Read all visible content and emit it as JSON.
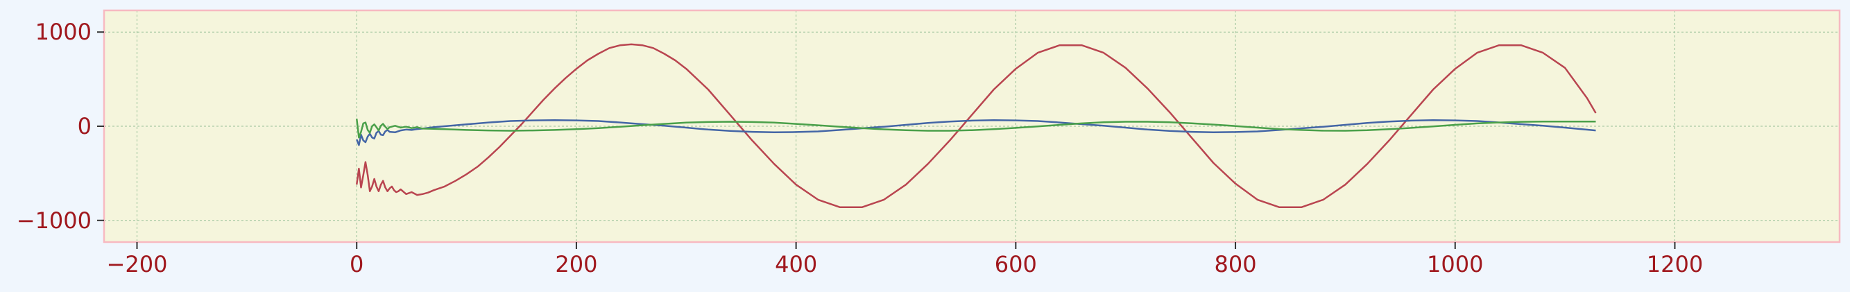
{
  "chart_data": {
    "type": "line",
    "title": "",
    "xlabel": "",
    "ylabel": "",
    "xlim": [
      -230,
      1350
    ],
    "ylim": [
      -1230,
      1230
    ],
    "xticks": [
      -200,
      0,
      200,
      400,
      600,
      800,
      1000,
      1200
    ],
    "xtick_labels": [
      "−200",
      "0",
      "200",
      "400",
      "600",
      "800",
      "1000",
      "1200"
    ],
    "yticks": [
      -1000,
      0,
      1000
    ],
    "ytick_labels": [
      "−1000",
      "0",
      "1000"
    ],
    "grid": true,
    "legend": "none",
    "colors": {
      "page_background": "#f0f6fd",
      "plot_background": "#f5f5dc",
      "frame": "#f7b9c1",
      "tick_label": "#a0181e",
      "grid": "#98c098"
    },
    "series": [
      {
        "color": "#b94550",
        "x": [
          0,
          2,
          4,
          6,
          8,
          10,
          12,
          14,
          16,
          18,
          20,
          22,
          24,
          26,
          28,
          30,
          32,
          34,
          36,
          38,
          40,
          45,
          50,
          55,
          60,
          65,
          70,
          80,
          90,
          100,
          110,
          120,
          130,
          140,
          150,
          160,
          170,
          180,
          190,
          200,
          210,
          220,
          230,
          240,
          250,
          260,
          270,
          280,
          290,
          300,
          320,
          340,
          360,
          380,
          400,
          420,
          440,
          460,
          480,
          500,
          520,
          540,
          560,
          580,
          600,
          620,
          640,
          660,
          680,
          700,
          720,
          740,
          760,
          780,
          800,
          820,
          840,
          860,
          880,
          900,
          920,
          940,
          960,
          980,
          1000,
          1020,
          1040,
          1060,
          1080,
          1100,
          1120,
          1128
        ],
        "y": [
          -620,
          -450,
          -650,
          -520,
          -380,
          -520,
          -690,
          -640,
          -560,
          -640,
          -690,
          -620,
          -580,
          -650,
          -690,
          -660,
          -640,
          -680,
          -700,
          -690,
          -670,
          -720,
          -700,
          -730,
          -720,
          -705,
          -680,
          -640,
          -580,
          -510,
          -430,
          -330,
          -220,
          -100,
          20,
          150,
          280,
          400,
          510,
          610,
          700,
          770,
          830,
          860,
          870,
          860,
          830,
          770,
          700,
          610,
          390,
          120,
          -150,
          -400,
          -620,
          -780,
          -860,
          -860,
          -780,
          -620,
          -400,
          -150,
          120,
          390,
          610,
          780,
          860,
          860,
          780,
          620,
          400,
          150,
          -120,
          -390,
          -610,
          -780,
          -860,
          -860,
          -780,
          -620,
          -400,
          -150,
          120,
          390,
          610,
          780,
          860,
          860,
          780,
          620,
          300,
          140
        ]
      },
      {
        "color": "#4466a6",
        "x": [
          0,
          2,
          4,
          6,
          8,
          10,
          12,
          14,
          16,
          18,
          20,
          22,
          24,
          26,
          28,
          30,
          35,
          40,
          45,
          50,
          55,
          60,
          70,
          80,
          100,
          120,
          140,
          160,
          180,
          200,
          220,
          240,
          260,
          280,
          300,
          320,
          340,
          360,
          380,
          400,
          420,
          440,
          460,
          480,
          500,
          520,
          540,
          560,
          580,
          600,
          620,
          640,
          660,
          680,
          700,
          720,
          740,
          760,
          780,
          800,
          820,
          840,
          860,
          880,
          900,
          920,
          940,
          960,
          980,
          1000,
          1020,
          1040,
          1060,
          1080,
          1100,
          1128
        ],
        "y": [
          -140,
          -200,
          -90,
          -150,
          -170,
          -110,
          -80,
          -120,
          -130,
          -70,
          -50,
          -90,
          -95,
          -55,
          -40,
          -60,
          -65,
          -45,
          -35,
          -40,
          -30,
          -25,
          -10,
          0,
          20,
          40,
          55,
          62,
          65,
          62,
          55,
          40,
          22,
          5,
          -15,
          -35,
          -50,
          -60,
          -65,
          -62,
          -55,
          -40,
          -22,
          -5,
          15,
          35,
          50,
          60,
          65,
          62,
          55,
          40,
          22,
          5,
          -15,
          -35,
          -50,
          -60,
          -65,
          -62,
          -55,
          -40,
          -22,
          -5,
          15,
          35,
          50,
          60,
          65,
          62,
          55,
          40,
          22,
          5,
          -15,
          -45
        ]
      },
      {
        "color": "#4aa04a",
        "x": [
          0,
          2,
          4,
          6,
          8,
          10,
          12,
          14,
          16,
          18,
          20,
          22,
          24,
          26,
          28,
          30,
          35,
          40,
          45,
          50,
          55,
          60,
          70,
          80,
          100,
          120,
          140,
          160,
          180,
          200,
          220,
          240,
          260,
          280,
          300,
          320,
          340,
          360,
          380,
          400,
          420,
          440,
          460,
          480,
          500,
          520,
          540,
          560,
          580,
          600,
          620,
          640,
          660,
          680,
          700,
          720,
          740,
          760,
          780,
          800,
          820,
          840,
          860,
          880,
          900,
          920,
          940,
          960,
          980,
          1000,
          1020,
          1040,
          1060,
          1080,
          1100,
          1128
        ],
        "y": [
          80,
          -120,
          -60,
          30,
          40,
          -40,
          -70,
          0,
          20,
          -10,
          -45,
          5,
          25,
          -5,
          -30,
          -10,
          5,
          -15,
          -5,
          -20,
          -10,
          -25,
          -28,
          -32,
          -40,
          -45,
          -48,
          -45,
          -40,
          -32,
          -20,
          -5,
          10,
          25,
          38,
          45,
          48,
          45,
          38,
          25,
          10,
          -5,
          -20,
          -33,
          -42,
          -48,
          -48,
          -42,
          -32,
          -18,
          -2,
          15,
          30,
          42,
          48,
          48,
          42,
          32,
          18,
          2,
          -15,
          -30,
          -40,
          -47,
          -48,
          -43,
          -32,
          -18,
          -2,
          15,
          30,
          40,
          47,
          50,
          50,
          50
        ]
      }
    ]
  }
}
